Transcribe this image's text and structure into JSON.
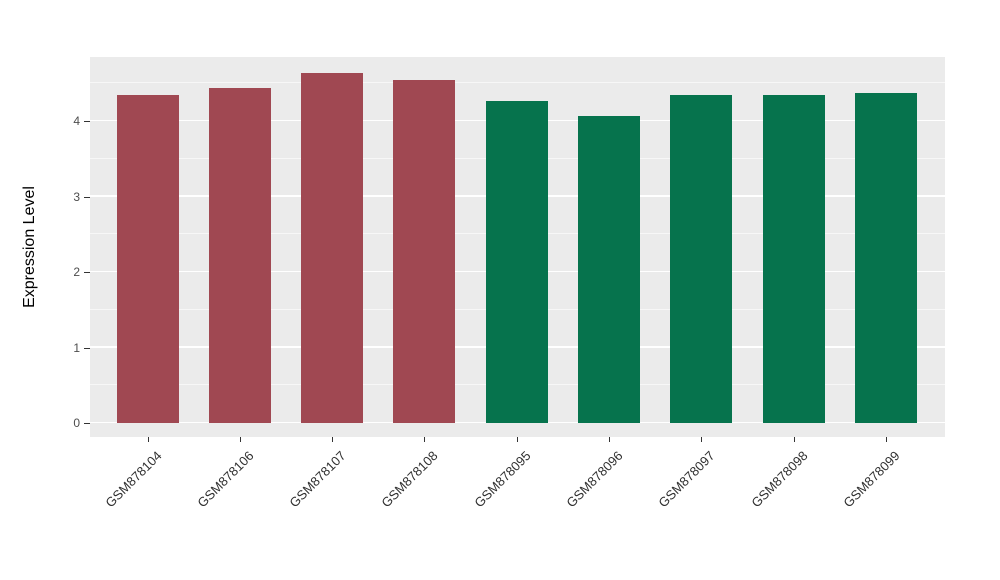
{
  "chart_data": {
    "type": "bar",
    "title": "",
    "xlabel": "",
    "ylabel": "Expression Level",
    "categories": [
      "GSM878104",
      "GSM878106",
      "GSM878107",
      "GSM878108",
      "GSM878095",
      "GSM878096",
      "GSM878097",
      "GSM878098",
      "GSM878099"
    ],
    "values": [
      4.34,
      4.44,
      4.64,
      4.54,
      4.26,
      4.07,
      4.34,
      4.34,
      4.37
    ],
    "bar_colors": [
      "#A04852",
      "#A04852",
      "#A04852",
      "#A04852",
      "#06734D",
      "#06734D",
      "#06734D",
      "#06734D",
      "#06734D"
    ],
    "series_groups": [
      {
        "name": "group-red",
        "color": "#A04852",
        "members": [
          "GSM878104",
          "GSM878106",
          "GSM878107",
          "GSM878108"
        ]
      },
      {
        "name": "group-green",
        "color": "#06734D",
        "members": [
          "GSM878095",
          "GSM878096",
          "GSM878097",
          "GSM878098",
          "GSM878099"
        ]
      }
    ],
    "yticks": [
      0,
      1,
      2,
      3,
      4
    ],
    "minor_yticks": [
      0.5,
      1.5,
      2.5,
      3.5,
      4.5
    ],
    "ylim": [
      0,
      4.85
    ],
    "grid": true,
    "legend": "none",
    "panel_bg": "#EBEBEB",
    "grid_major_color": "#FFFFFF",
    "tick_text_color": "#4D4D4D",
    "axis_title_color": "#000000"
  }
}
